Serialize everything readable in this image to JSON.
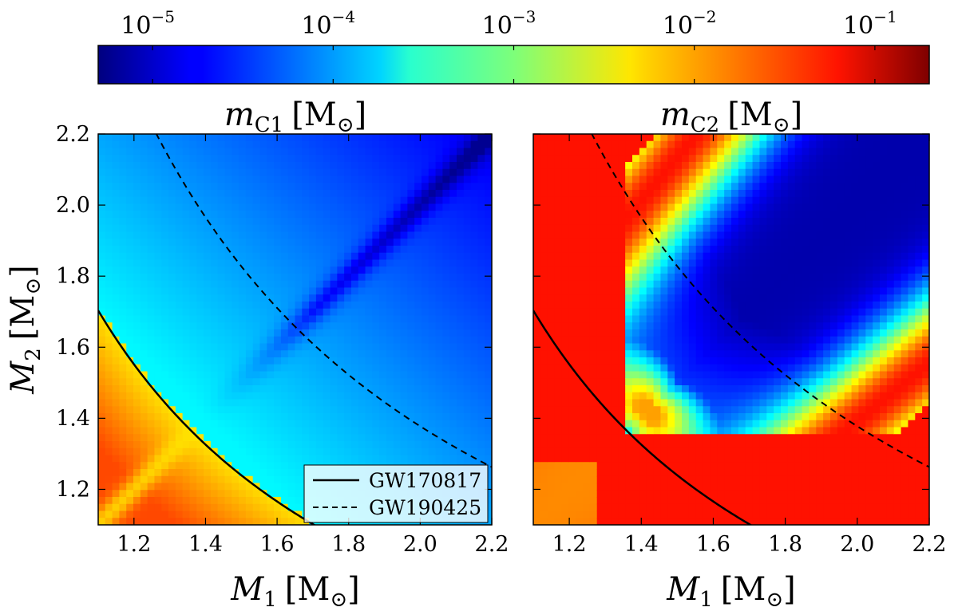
{
  "chart_data": {
    "type": "heatmap",
    "colorbar": {
      "colormap": "jet",
      "scale": "log",
      "range": [
        5e-06,
        0.2
      ],
      "ticks": [
        {
          "value": 1e-05,
          "base": "10",
          "exp": "−5"
        },
        {
          "value": 0.0001,
          "base": "10",
          "exp": "−4"
        },
        {
          "value": 0.001,
          "base": "10",
          "exp": "−3"
        },
        {
          "value": 0.01,
          "base": "10",
          "exp": "−2"
        },
        {
          "value": 0.1,
          "base": "10",
          "exp": "−1"
        }
      ]
    },
    "panels": [
      {
        "title": {
          "symbol": "m",
          "sub": "C1",
          "unit": "[M",
          "unit_sub": "⊙",
          "close": "]"
        },
        "xlabel": {
          "symbol": "M",
          "sub": "1",
          "unit": "[M",
          "unit_sub": "⊙",
          "close": "]"
        },
        "ylabel": {
          "symbol": "M",
          "sub": "2",
          "unit": "[M",
          "unit_sub": "⊙",
          "close": "]"
        },
        "xlim": [
          1.1,
          2.2
        ],
        "ylim": [
          1.1,
          2.2
        ],
        "xticks": [
          "1.2",
          "1.4",
          "1.6",
          "1.8",
          "2.0",
          "2.2"
        ],
        "yticks": [
          "1.2",
          "1.4",
          "1.6",
          "1.8",
          "2.0",
          "2.2"
        ],
        "legend": {
          "position": "lower-right",
          "entries": [
            {
              "label": "GW170817",
              "style": "solid"
            },
            {
              "label": "GW190425",
              "style": "dashed"
            }
          ]
        },
        "curves": [
          {
            "label": "GW170817",
            "style": "solid",
            "chirp_mass": 1.186
          },
          {
            "label": "GW190425",
            "style": "dashed",
            "chirp_mass": 1.44
          }
        ],
        "value_samples": {
          "below_GW170817_corner": 0.02,
          "below_GW170817_near_curve": 0.005,
          "just_above_GW170817": 0.0002,
          "upper_left": 0.0003,
          "diagonal_M1_eq_M2": 5e-05,
          "upper_right_corner": 1e-05
        }
      },
      {
        "title": {
          "symbol": "m",
          "sub": "C2",
          "unit": "[M",
          "unit_sub": "⊙",
          "close": "]"
        },
        "xlabel": {
          "symbol": "M",
          "sub": "1",
          "unit": "[M",
          "unit_sub": "⊙",
          "close": "]"
        },
        "ylabel": null,
        "xlim": [
          1.1,
          2.2
        ],
        "ylim": [
          1.1,
          2.2
        ],
        "xticks": [
          "1.2",
          "1.4",
          "1.6",
          "1.8",
          "2.0",
          "2.2"
        ],
        "yticks": [],
        "curves": [
          {
            "label": "GW170817",
            "style": "solid",
            "chirp_mass": 1.186
          },
          {
            "label": "GW190425",
            "style": "dashed",
            "chirp_mass": 1.44
          }
        ],
        "value_samples": {
          "outer_region": 0.05,
          "lower_left_corner": 0.01,
          "yellow_band": 0.005,
          "cyan_band": 0.0002,
          "diagonal_M1_eq_M2": 8e-06
        }
      }
    ]
  }
}
